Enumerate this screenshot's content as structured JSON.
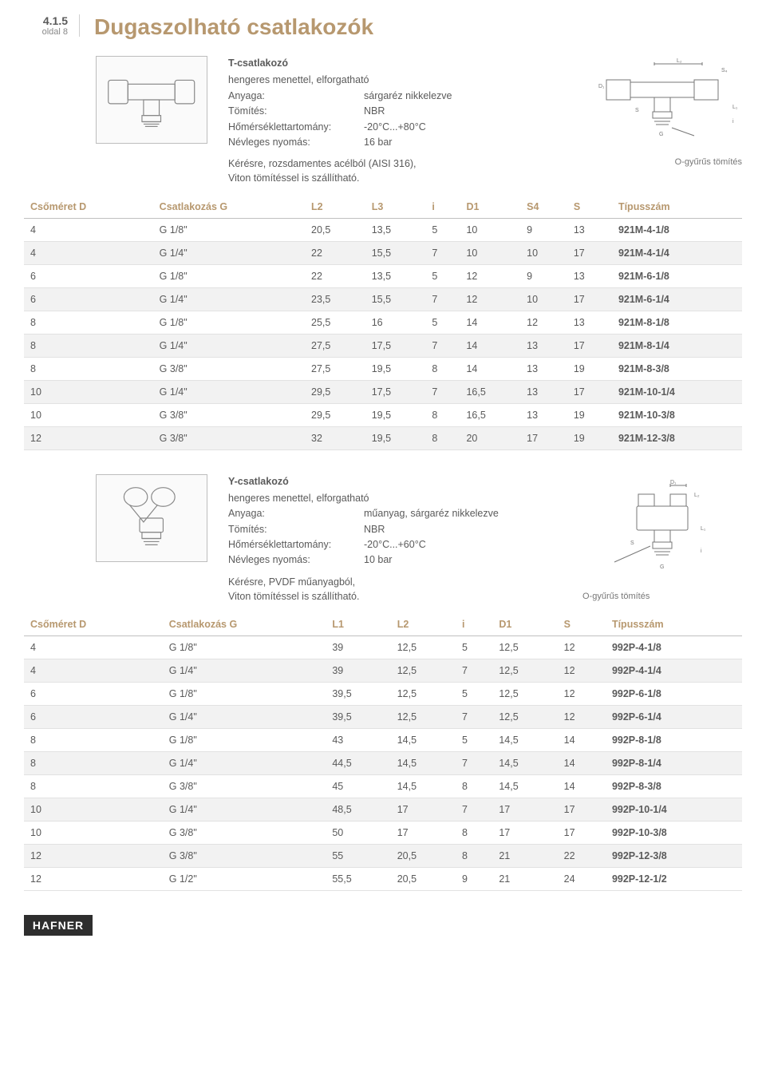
{
  "header": {
    "section_num": "4.1.5",
    "section_sub": "oldal 8",
    "title": "Dugaszolható csatlakozók"
  },
  "product1": {
    "title": "T-csatlakozó",
    "subtitle": "hengeres menettel, elforgatható",
    "specs": [
      {
        "label": "Anyaga:",
        "value": "sárgaréz nikkelezve"
      },
      {
        "label": "Tömítés:",
        "value": "NBR"
      },
      {
        "label": "Hőmérséklettartomány:",
        "value": "-20°C...+80°C"
      },
      {
        "label": "Névleges nyomás:",
        "value": "16 bar"
      }
    ],
    "note1": "Kérésre, rozsdamentes acélból (AISI 316),",
    "note2": "Viton tömítéssel is szállítható.",
    "diagram_label": "O-gyűrűs tömítés",
    "table": {
      "columns": [
        "Csőméret D",
        "Csatlakozás G",
        "L2",
        "L3",
        "i",
        "D1",
        "S4",
        "S",
        "Típusszám"
      ],
      "rows": [
        [
          "4",
          "G 1/8\"",
          "20,5",
          "13,5",
          "5",
          "10",
          "9",
          "13",
          "921M-4-1/8"
        ],
        [
          "4",
          "G 1/4\"",
          "22",
          "15,5",
          "7",
          "10",
          "10",
          "17",
          "921M-4-1/4"
        ],
        [
          "6",
          "G 1/8\"",
          "22",
          "13,5",
          "5",
          "12",
          "9",
          "13",
          "921M-6-1/8"
        ],
        [
          "6",
          "G 1/4\"",
          "23,5",
          "15,5",
          "7",
          "12",
          "10",
          "17",
          "921M-6-1/4"
        ],
        [
          "8",
          "G 1/8\"",
          "25,5",
          "16",
          "5",
          "14",
          "12",
          "13",
          "921M-8-1/8"
        ],
        [
          "8",
          "G 1/4\"",
          "27,5",
          "17,5",
          "7",
          "14",
          "13",
          "17",
          "921M-8-1/4"
        ],
        [
          "8",
          "G 3/8\"",
          "27,5",
          "19,5",
          "8",
          "14",
          "13",
          "19",
          "921M-8-3/8"
        ],
        [
          "10",
          "G 1/4\"",
          "29,5",
          "17,5",
          "7",
          "16,5",
          "13",
          "17",
          "921M-10-1/4"
        ],
        [
          "10",
          "G 3/8\"",
          "29,5",
          "19,5",
          "8",
          "16,5",
          "13",
          "19",
          "921M-10-3/8"
        ],
        [
          "12",
          "G 3/8\"",
          "32",
          "19,5",
          "8",
          "20",
          "17",
          "19",
          "921M-12-3/8"
        ]
      ]
    }
  },
  "product2": {
    "title": "Y-csatlakozó",
    "subtitle": "hengeres menettel, elforgatható",
    "specs": [
      {
        "label": "Anyaga:",
        "value": "műanyag, sárgaréz nikkelezve"
      },
      {
        "label": "Tömítés:",
        "value": "NBR"
      },
      {
        "label": "Hőmérséklettartomány:",
        "value": "-20°C...+60°C"
      },
      {
        "label": "Névleges nyomás:",
        "value": "10 bar"
      }
    ],
    "note1": "Kérésre, PVDF műanyagból,",
    "note2": "Viton tömítéssel is szállítható.",
    "diagram_label": "O-gyűrűs tömítés",
    "table": {
      "columns": [
        "Csőméret D",
        "Csatlakozás G",
        "L1",
        "L2",
        "i",
        "D1",
        "S",
        "Típusszám"
      ],
      "rows": [
        [
          "4",
          "G 1/8\"",
          "39",
          "12,5",
          "5",
          "12,5",
          "12",
          "992P-4-1/8"
        ],
        [
          "4",
          "G 1/4\"",
          "39",
          "12,5",
          "7",
          "12,5",
          "12",
          "992P-4-1/4"
        ],
        [
          "6",
          "G 1/8\"",
          "39,5",
          "12,5",
          "5",
          "12,5",
          "12",
          "992P-6-1/8"
        ],
        [
          "6",
          "G 1/4\"",
          "39,5",
          "12,5",
          "7",
          "12,5",
          "12",
          "992P-6-1/4"
        ],
        [
          "8",
          "G 1/8\"",
          "43",
          "14,5",
          "5",
          "14,5",
          "14",
          "992P-8-1/8"
        ],
        [
          "8",
          "G 1/4\"",
          "44,5",
          "14,5",
          "7",
          "14,5",
          "14",
          "992P-8-1/4"
        ],
        [
          "8",
          "G 3/8\"",
          "45",
          "14,5",
          "8",
          "14,5",
          "14",
          "992P-8-3/8"
        ],
        [
          "10",
          "G 1/4\"",
          "48,5",
          "17",
          "7",
          "17",
          "17",
          "992P-10-1/4"
        ],
        [
          "10",
          "G 3/8\"",
          "50",
          "17",
          "8",
          "17",
          "17",
          "992P-10-3/8"
        ],
        [
          "12",
          "G 3/8\"",
          "55",
          "20,5",
          "8",
          "21",
          "22",
          "992P-12-3/8"
        ],
        [
          "12",
          "G 1/2\"",
          "55,5",
          "20,5",
          "9",
          "21",
          "24",
          "992P-12-1/2"
        ]
      ]
    }
  },
  "footer": {
    "logo": "HAFNER"
  }
}
